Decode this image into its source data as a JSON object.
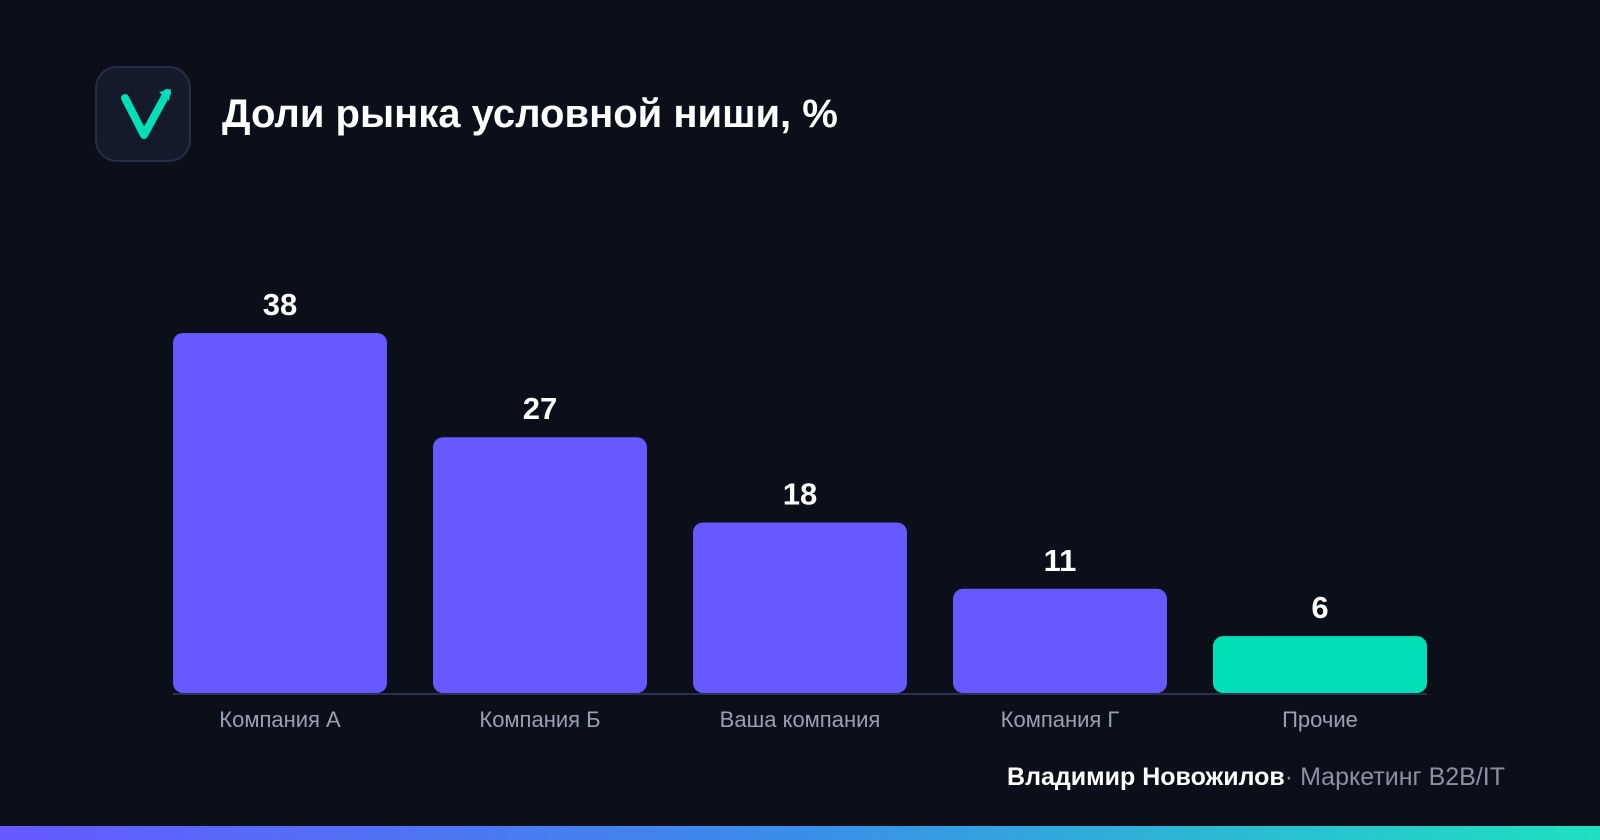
{
  "header": {
    "title": "Доли рынка условной ниши, %",
    "logo_icon": "checkmark-arrow-icon"
  },
  "colors": {
    "background": "#0b0f19",
    "bar_primary": "#6659ff",
    "bar_highlight": "#00dfb8",
    "label_text": "#9aa0b4",
    "value_text": "#ffffff"
  },
  "chart_data": {
    "type": "bar",
    "title": "Доли рынка условной ниши, %",
    "categories": [
      "Компания А",
      "Компания Б",
      "Ваша компания",
      "Компания Г",
      "Прочие"
    ],
    "values": [
      38,
      27,
      18,
      11,
      6
    ],
    "highlight_index": 4,
    "data_labels": [
      "38",
      "27",
      "18",
      "11",
      "6"
    ],
    "ylim": [
      0,
      38
    ],
    "grid": false,
    "legend": "none",
    "xlabel": "",
    "ylabel": ""
  },
  "footer": {
    "author": "Владимир Новожилов",
    "separator": "·",
    "role": "Маркетинг B2B/IT"
  }
}
